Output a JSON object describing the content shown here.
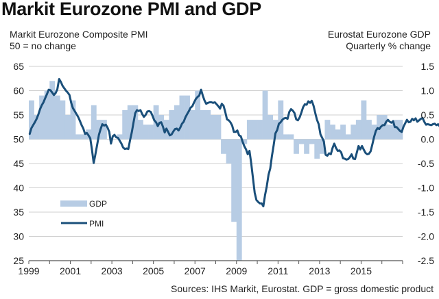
{
  "chart_data": {
    "type": "bar+line",
    "title": "Markit Eurozone PMI and GDP",
    "left_axis_title": [
      "Markit Eurozone Composite PMI",
      "50 = no change"
    ],
    "right_axis_title": [
      "Eurostat Eurozone GDP",
      "Quarterly % change"
    ],
    "source": "Sources: IHS Markit, Eurostat. GDP = gross domestic product",
    "x_ticks": [
      "1999",
      "2001",
      "2003",
      "2005",
      "2007",
      "2009",
      "2011",
      "2013",
      "2015"
    ],
    "x_range": [
      1999,
      2017
    ],
    "left_ylim": [
      25,
      65
    ],
    "left_ticks": [
      "65",
      "60",
      "55",
      "50",
      "45",
      "40",
      "35",
      "30",
      "25"
    ],
    "right_ylim": [
      -2.5,
      1.5
    ],
    "right_ticks": [
      "1.5",
      "1.0",
      "0.5",
      "0.0",
      "-0.5",
      "-1.0",
      "-1.5",
      "-2.0",
      "-2.5"
    ],
    "grid": true,
    "legend": {
      "placement": "lower-left",
      "entries": [
        {
          "name": "GDP",
          "type": "bar",
          "color": "#b7cce4"
        },
        {
          "name": "PMI",
          "type": "line",
          "color": "#1a4f7a"
        }
      ]
    },
    "series": [
      {
        "name": "GDP",
        "axis": "right",
        "type": "bar",
        "frequency": "quarterly",
        "start": "1999Q1",
        "values": [
          0.8,
          0.5,
          0.9,
          1.0,
          1.2,
          0.9,
          0.8,
          0.5,
          0.8,
          0.1,
          0.1,
          0.2,
          0.7,
          0.4,
          0.4,
          0.0,
          0.0,
          0.1,
          0.6,
          0.7,
          0.7,
          0.4,
          0.3,
          0.3,
          0.7,
          0.5,
          0.4,
          0.6,
          0.7,
          0.9,
          0.9,
          0.6,
          1.0,
          0.6,
          0.6,
          0.5,
          0.5,
          -0.3,
          -0.5,
          -1.7,
          -2.5,
          -0.1,
          0.4,
          0.4,
          0.4,
          1.0,
          0.5,
          0.4,
          0.8,
          0.1,
          0.1,
          -0.3,
          -0.1,
          -0.3,
          -0.1,
          -0.4,
          -0.3,
          0.4,
          0.3,
          0.2,
          0.3,
          0.1,
          0.3,
          0.4,
          0.8,
          0.4,
          0.3,
          0.5,
          0.5,
          0.3,
          0.4,
          0.4
        ]
      },
      {
        "name": "PMI",
        "axis": "left",
        "type": "line",
        "frequency": "monthly",
        "start": "1999-01",
        "values": [
          51.1,
          52.3,
          52.9,
          53.5,
          54.2,
          55.1,
          56.2,
          57.0,
          57.6,
          58.5,
          59.3,
          60.2,
          60.1,
          59.6,
          59.1,
          59.5,
          60.3,
          62.4,
          61.8,
          61.0,
          60.5,
          60.0,
          59.6,
          59.1,
          57.5,
          56.4,
          55.8,
          55.2,
          54.6,
          53.8,
          52.9,
          52.2,
          51.1,
          51.3,
          50.8,
          50.2,
          47.8,
          45.1,
          46.9,
          48.9,
          50.9,
          52.1,
          53.1,
          52.8,
          53.0,
          52.4,
          51.5,
          49.1,
          50.6,
          50.9,
          50.4,
          50.3,
          49.7,
          49.1,
          48.3,
          48.0,
          48.1,
          48.0,
          49.8,
          51.4,
          53.5,
          55.4,
          56.0,
          55.8,
          56.0,
          55.2,
          54.6,
          55.0,
          55.7,
          55.8,
          55.6,
          54.8,
          53.9,
          53.5,
          52.7,
          53.4,
          53.5,
          52.6,
          51.4,
          52.2,
          51.5,
          50.8,
          51.0,
          51.6,
          52.1,
          52.2,
          51.8,
          52.4,
          53.2,
          53.6,
          54.5,
          55.2,
          55.8,
          56.5,
          56.8,
          57.6,
          58.3,
          58.7,
          59.0,
          60.2,
          59.0,
          58.0,
          57.3,
          57.5,
          57.6,
          57.6,
          57.5,
          57.6,
          57.2,
          56.8,
          56.3,
          57.3,
          56.9,
          55.6,
          54.1,
          53.9,
          53.5,
          52.8,
          51.5,
          51.5,
          51.8,
          50.8,
          50.6,
          49.5,
          48.6,
          47.9,
          46.9,
          47.6,
          45.1,
          42.1,
          39.0,
          37.5,
          37.1,
          36.8,
          36.8,
          36.2,
          38.5,
          40.3,
          42.7,
          44.0,
          46.6,
          48.8,
          51.2,
          51.9,
          53.2,
          53.5,
          54.0,
          54.3,
          54.4,
          54.2,
          55.6,
          56.2,
          55.9,
          55.4,
          54.1,
          53.9,
          54.5,
          55.5,
          56.6,
          57.2,
          57.1,
          57.8,
          57.5,
          57.9,
          56.9,
          55.4,
          54.0,
          53.1,
          51.0,
          50.3,
          49.5,
          46.8,
          46.6,
          47.1,
          46.9,
          48.2,
          49.1,
          48.2,
          47.6,
          47.7,
          47.3,
          46.1,
          46.0,
          45.8,
          45.9,
          46.3,
          46.9,
          46.0,
          45.9,
          47.2,
          48.6,
          47.9,
          48.6,
          47.9,
          47.2,
          46.9,
          47.0,
          47.5,
          48.9,
          50.5,
          51.7,
          52.3,
          52.1,
          52.6,
          52.9,
          52.9,
          53.6,
          54.0,
          53.6,
          53.4,
          53.7,
          52.5,
          52.5,
          52.1,
          51.7,
          51.5,
          52.6,
          53.3,
          54.0,
          53.5,
          53.6,
          54.2,
          53.9,
          54.3,
          53.6,
          53.9,
          54.2,
          54.4,
          53.6,
          53.0,
          53.1,
          53.0,
          52.9,
          53.1,
          53.2,
          52.9,
          53.1,
          52.6,
          53.3,
          54.4
        ]
      }
    ]
  }
}
